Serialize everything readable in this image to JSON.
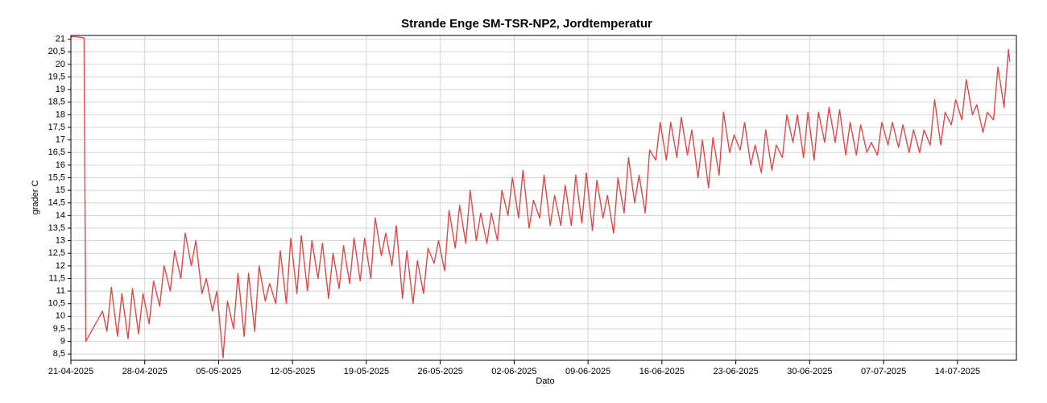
{
  "chart_data": {
    "type": "line",
    "title": "Strande Enge SM-TSR-NP2, Jordtemperatur",
    "xlabel": "Dato",
    "ylabel": "grader C",
    "color": "#e04848",
    "grid": true,
    "xlim": [
      "2025-04-21 00:00",
      "2025-07-19 14:00"
    ],
    "xticks": [
      {
        "value": "2025-04-21 00:00",
        "label": "21-04-2025"
      },
      {
        "value": "2025-04-28 00:00",
        "label": "28-04-2025"
      },
      {
        "value": "2025-05-05 00:00",
        "label": "05-05-2025"
      },
      {
        "value": "2025-05-12 00:00",
        "label": "12-05-2025"
      },
      {
        "value": "2025-05-19 00:00",
        "label": "19-05-2025"
      },
      {
        "value": "2025-05-26 00:00",
        "label": "26-05-2025"
      },
      {
        "value": "2025-06-02 00:00",
        "label": "02-06-2025"
      },
      {
        "value": "2025-06-09 00:00",
        "label": "09-06-2025"
      },
      {
        "value": "2025-06-16 00:00",
        "label": "16-06-2025"
      },
      {
        "value": "2025-06-23 00:00",
        "label": "23-06-2025"
      },
      {
        "value": "2025-06-30 00:00",
        "label": "30-06-2025"
      },
      {
        "value": "2025-07-07 00:00",
        "label": "07-07-2025"
      },
      {
        "value": "2025-07-14 00:00",
        "label": "14-07-2025"
      }
    ],
    "ylim": [
      8.25,
      21.15
    ],
    "yticks": [
      {
        "value": 8.5,
        "label": "8,5"
      },
      9,
      {
        "value": 9.5,
        "label": "9,5"
      },
      10,
      {
        "value": 10.5,
        "label": "10,5"
      },
      11,
      {
        "value": 11.5,
        "label": "11,5"
      },
      12,
      {
        "value": 12.5,
        "label": "12,5"
      },
      13,
      {
        "value": 13.5,
        "label": "13,5"
      },
      14,
      {
        "value": 14.5,
        "label": "14,5"
      },
      15,
      {
        "value": 15.5,
        "label": "15,5"
      },
      16,
      {
        "value": 16.5,
        "label": "16,5"
      },
      17,
      {
        "value": 17.5,
        "label": "17,5"
      },
      18,
      {
        "value": 18.5,
        "label": "18,5"
      },
      19,
      {
        "value": 19.5,
        "label": "19,5"
      },
      20,
      {
        "value": 20.5,
        "label": "20,5"
      },
      21
    ],
    "x": [
      "2025-04-21 00:00",
      "2025-04-21 12:00",
      "2025-04-22 06:00",
      "2025-04-22 10:00",
      "2025-04-24 00:00",
      "2025-04-24 10:00",
      "2025-04-24 20:00",
      "2025-04-25 10:00",
      "2025-04-25 20:00",
      "2025-04-26 10:00",
      "2025-04-26 20:00",
      "2025-04-27 10:00",
      "2025-04-27 20:00",
      "2025-04-28 10:00",
      "2025-04-28 20:00",
      "2025-04-29 10:00",
      "2025-04-29 20:00",
      "2025-04-30 10:00",
      "2025-04-30 20:00",
      "2025-05-01 10:00",
      "2025-05-01 20:00",
      "2025-05-02 10:00",
      "2025-05-02 20:00",
      "2025-05-03 10:00",
      "2025-05-03 20:00",
      "2025-05-04 10:00",
      "2025-05-04 20:00",
      "2025-05-05 10:00",
      "2025-05-05 20:00",
      "2025-05-06 10:00",
      "2025-05-06 20:00",
      "2025-05-07 10:00",
      "2025-05-07 20:00",
      "2025-05-08 10:00",
      "2025-05-08 20:00",
      "2025-05-09 10:00",
      "2025-05-09 20:00",
      "2025-05-10 10:00",
      "2025-05-10 20:00",
      "2025-05-11 10:00",
      "2025-05-11 20:00",
      "2025-05-12 10:00",
      "2025-05-12 20:00",
      "2025-05-13 10:00",
      "2025-05-13 20:00",
      "2025-05-14 10:00",
      "2025-05-14 20:00",
      "2025-05-15 10:00",
      "2025-05-15 20:00",
      "2025-05-16 10:00",
      "2025-05-16 20:00",
      "2025-05-17 10:00",
      "2025-05-17 20:00",
      "2025-05-18 10:00",
      "2025-05-18 20:00",
      "2025-05-19 10:00",
      "2025-05-19 20:00",
      "2025-05-20 10:00",
      "2025-05-20 20:00",
      "2025-05-21 10:00",
      "2025-05-21 20:00",
      "2025-05-22 10:00",
      "2025-05-22 20:00",
      "2025-05-23 10:00",
      "2025-05-23 20:00",
      "2025-05-24 10:00",
      "2025-05-24 20:00",
      "2025-05-25 10:00",
      "2025-05-25 20:00",
      "2025-05-26 10:00",
      "2025-05-26 20:00",
      "2025-05-27 10:00",
      "2025-05-27 20:00",
      "2025-05-28 10:00",
      "2025-05-28 20:00",
      "2025-05-29 10:00",
      "2025-05-29 20:00",
      "2025-05-30 10:00",
      "2025-05-30 20:00",
      "2025-05-31 10:00",
      "2025-05-31 20:00",
      "2025-06-01 10:00",
      "2025-06-01 20:00",
      "2025-06-02 10:00",
      "2025-06-02 20:00",
      "2025-06-03 10:00",
      "2025-06-03 20:00",
      "2025-06-04 10:00",
      "2025-06-04 20:00",
      "2025-06-05 10:00",
      "2025-06-05 20:00",
      "2025-06-06 10:00",
      "2025-06-06 20:00",
      "2025-06-07 10:00",
      "2025-06-07 20:00",
      "2025-06-08 10:00",
      "2025-06-08 20:00",
      "2025-06-09 10:00",
      "2025-06-09 20:00",
      "2025-06-10 10:00",
      "2025-06-10 20:00",
      "2025-06-11 10:00",
      "2025-06-11 20:00",
      "2025-06-12 10:00",
      "2025-06-12 20:00",
      "2025-06-13 10:00",
      "2025-06-13 20:00",
      "2025-06-14 10:00",
      "2025-06-14 20:00",
      "2025-06-15 10:00",
      "2025-06-15 20:00",
      "2025-06-16 10:00",
      "2025-06-16 20:00",
      "2025-06-17 10:00",
      "2025-06-17 20:00",
      "2025-06-18 10:00",
      "2025-06-18 20:00",
      "2025-06-19 10:00",
      "2025-06-19 20:00",
      "2025-06-20 10:00",
      "2025-06-20 20:00",
      "2025-06-21 10:00",
      "2025-06-21 20:00",
      "2025-06-22 10:00",
      "2025-06-22 20:00",
      "2025-06-23 10:00",
      "2025-06-23 20:00",
      "2025-06-24 10:00",
      "2025-06-24 20:00",
      "2025-06-25 10:00",
      "2025-06-25 20:00",
      "2025-06-26 10:00",
      "2025-06-26 20:00",
      "2025-06-27 10:00",
      "2025-06-27 20:00",
      "2025-06-28 10:00",
      "2025-06-28 20:00",
      "2025-06-29 10:00",
      "2025-06-29 20:00",
      "2025-06-30 10:00",
      "2025-06-30 20:00",
      "2025-07-01 10:00",
      "2025-07-01 20:00",
      "2025-07-02 10:00",
      "2025-07-02 20:00",
      "2025-07-03 10:00",
      "2025-07-03 20:00",
      "2025-07-04 10:00",
      "2025-07-04 20:00",
      "2025-07-05 10:00",
      "2025-07-05 20:00",
      "2025-07-06 10:00",
      "2025-07-06 20:00",
      "2025-07-07 10:00",
      "2025-07-07 20:00",
      "2025-07-08 10:00",
      "2025-07-08 20:00",
      "2025-07-09 10:00",
      "2025-07-09 20:00",
      "2025-07-10 10:00",
      "2025-07-10 20:00",
      "2025-07-11 10:00",
      "2025-07-11 20:00",
      "2025-07-12 10:00",
      "2025-07-12 20:00",
      "2025-07-13 10:00",
      "2025-07-13 20:00",
      "2025-07-14 10:00",
      "2025-07-14 20:00",
      "2025-07-15 10:00",
      "2025-07-15 20:00",
      "2025-07-16 10:00",
      "2025-07-16 20:00",
      "2025-07-17 10:00",
      "2025-07-17 20:00",
      "2025-07-18 10:00",
      "2025-07-18 20:00",
      "2025-07-18 23:00"
    ],
    "values": [
      21.1,
      21.1,
      21.05,
      9.0,
      10.2,
      9.4,
      11.15,
      9.2,
      10.9,
      9.1,
      11.1,
      9.3,
      10.9,
      9.7,
      11.4,
      10.4,
      12.0,
      11.0,
      12.6,
      11.5,
      13.3,
      12.0,
      13.0,
      10.9,
      11.5,
      10.2,
      11.0,
      8.35,
      10.6,
      9.5,
      11.7,
      9.2,
      11.7,
      9.4,
      12.0,
      10.6,
      11.3,
      10.5,
      12.6,
      10.5,
      13.1,
      10.9,
      13.2,
      11.0,
      13.0,
      11.5,
      12.9,
      10.7,
      12.5,
      11.1,
      12.8,
      11.3,
      13.1,
      11.4,
      13.1,
      11.5,
      13.9,
      12.4,
      13.3,
      12.0,
      13.6,
      10.7,
      12.6,
      10.5,
      12.2,
      10.9,
      12.7,
      12.1,
      13.0,
      11.8,
      14.2,
      12.7,
      14.4,
      12.9,
      15.0,
      13.0,
      14.1,
      12.9,
      14.1,
      13.0,
      15.0,
      14.0,
      15.5,
      13.9,
      15.8,
      13.5,
      14.6,
      13.9,
      15.6,
      13.6,
      14.8,
      13.6,
      15.2,
      13.6,
      15.6,
      13.7,
      15.7,
      13.4,
      15.4,
      13.9,
      14.8,
      13.3,
      15.5,
      14.1,
      16.3,
      14.5,
      15.6,
      14.1,
      16.6,
      16.2,
      17.7,
      16.2,
      17.7,
      16.3,
      17.9,
      16.4,
      17.4,
      15.5,
      17.0,
      15.1,
      17.1,
      15.6,
      18.1,
      16.5,
      17.2,
      16.6,
      17.7,
      16.0,
      16.8,
      15.7,
      17.4,
      15.8,
      16.8,
      16.3,
      18.0,
      16.9,
      18.0,
      16.3,
      18.1,
      16.2,
      18.1,
      16.9,
      18.3,
      16.9,
      18.2,
      16.4,
      17.7,
      16.4,
      17.6,
      16.5,
      16.9,
      16.4,
      17.7,
      16.8,
      17.7,
      16.7,
      17.6,
      16.5,
      17.4,
      16.5,
      17.4,
      16.8,
      18.6,
      16.8,
      18.1,
      17.6,
      18.6,
      17.8,
      19.4,
      18.0,
      18.4,
      17.3,
      18.1,
      17.8,
      19.9,
      18.3,
      20.6,
      20.1
    ]
  }
}
